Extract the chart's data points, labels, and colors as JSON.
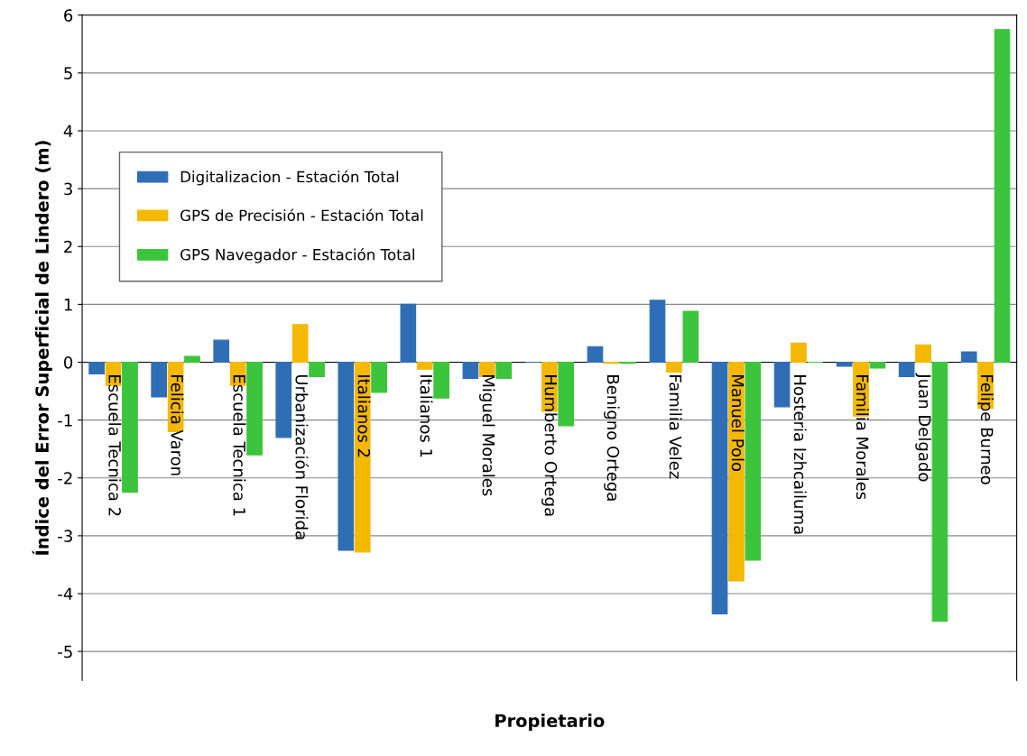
{
  "chart_data": {
    "type": "bar",
    "xlabel": "Propietario",
    "ylabel": "Índice del Error Superficial de Lindero (m)",
    "categories": [
      "Escuela Tecnica 2",
      "Felicia Varon",
      "Escuela Tecnica 1",
      "Urbanización Florida",
      "Italianos 2",
      "Italianos 1",
      "Miguel Morales",
      "Humberto Ortega",
      "Benigno Ortega",
      "Familia Velez",
      "Manuel Polo",
      "Hosteria Izhcailuma",
      "Familia Morales",
      "Juan Delgado",
      "Felipe Burneo"
    ],
    "series": [
      {
        "name": "Digitalizacion - Estación Total",
        "color": "#2f6db5",
        "values": [
          -0.2,
          -0.6,
          0.38,
          -1.3,
          -3.25,
          1.0,
          -0.28,
          0.0,
          0.27,
          1.07,
          -4.35,
          -0.77,
          -0.07,
          -0.25,
          0.18
        ]
      },
      {
        "name": "GPS de Precisión - Estación Total",
        "color": "#f5b800",
        "values": [
          -0.4,
          -1.2,
          -0.4,
          0.65,
          -3.28,
          -0.12,
          -0.25,
          -0.85,
          -0.02,
          -0.17,
          -3.78,
          0.33,
          -0.93,
          0.3,
          -0.8
        ]
      },
      {
        "name": "GPS Navegador - Estación Total",
        "color": "#3cc43c",
        "values": [
          -2.25,
          0.1,
          -1.6,
          -0.25,
          -0.52,
          -0.62,
          -0.28,
          -1.1,
          -0.02,
          0.88,
          -3.42,
          0.0,
          -0.1,
          -4.48,
          5.75
        ]
      }
    ],
    "ylim": [
      -5.5,
      6
    ],
    "yticks": [
      -5,
      -4,
      -3,
      -2,
      -1,
      0,
      1,
      2,
      3,
      4,
      5,
      6
    ],
    "grid": "y",
    "legend": "top left"
  }
}
